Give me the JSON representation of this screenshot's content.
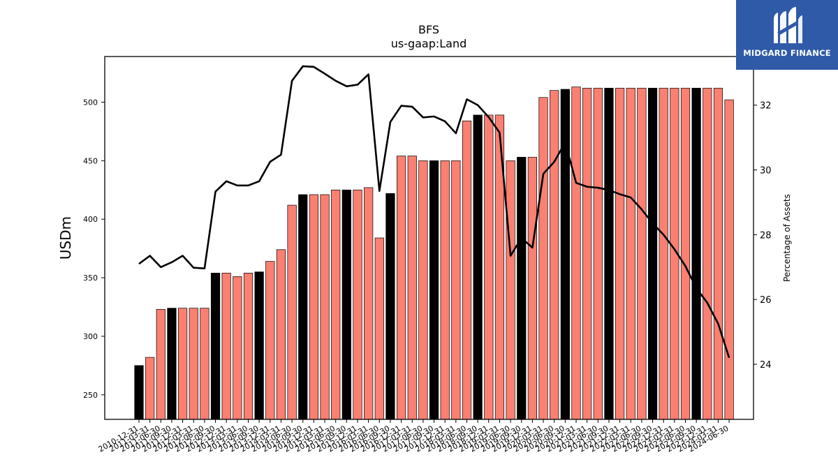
{
  "chart_data": {
    "type": "bar+line",
    "title": "BFS",
    "subtitle": "us-gaap:Land",
    "ylabel": "USDm",
    "y2label": "Percentage of Assets",
    "ylim": [
      229,
      539
    ],
    "y2lim": [
      22.3,
      33.5
    ],
    "yticks": [
      250,
      300,
      350,
      400,
      450,
      500
    ],
    "y2ticks": [
      24,
      26,
      28,
      30,
      32
    ],
    "highlight_color": "#000000",
    "bar_color": "#fa8072",
    "line_color": "#000000",
    "categories": [
      "2010-12-31",
      "2011-03-31",
      "2011-06-30",
      "2011-09-30",
      "2011-12-31",
      "2012-03-31",
      "2012-06-30",
      "2012-09-30",
      "2012-12-31",
      "2013-03-31",
      "2013-06-30",
      "2013-09-30",
      "2013-12-31",
      "2014-03-31",
      "2014-06-30",
      "2014-09-30",
      "2014-12-31",
      "2015-03-31",
      "2015-06-30",
      "2015-09-30",
      "2015-12-31",
      "2016-03-31",
      "2016-06-30",
      "2016-09-30",
      "2016-12-31",
      "2017-03-31",
      "2017-06-30",
      "2017-09-30",
      "2017-12-31",
      "2018-03-31",
      "2018-06-30",
      "2018-09-30",
      "2018-12-31",
      "2019-03-31",
      "2019-06-30",
      "2019-09-30",
      "2019-12-31",
      "2020-03-31",
      "2020-06-30",
      "2020-09-30",
      "2020-12-31",
      "2021-03-31",
      "2021-06-30",
      "2021-09-30",
      "2021-12-31",
      "2022-03-31",
      "2022-06-30",
      "2022-09-30",
      "2022-12-31",
      "2023-03-31",
      "2023-06-30",
      "2023-09-30",
      "2023-12-31",
      "2024-03-31",
      "2024-06-30"
    ],
    "tick_labels": [
      "2010-12-31",
      "2011-03-31",
      "2011-06-30",
      "2011-09-30",
      "2011-12-31",
      "2012-03-31",
      "2012-06-30",
      "2012-09-30",
      "2012-12-31",
      "2013-03-31",
      "2013-06-30",
      "2013-09-30",
      "2013-12-31",
      "2014-03-31",
      "2014-06-30",
      "2014-09-30",
      "2014-12-31",
      "2015-03-31",
      "2015-06-30",
      "2015-09-30",
      "2015-12-31",
      "2016-03-31",
      "2016-06-30",
      "2016-09-30",
      "2016-12-31",
      "2017-03-31",
      "2017-06-30",
      "2017-09-30",
      "2017-12-31",
      "2018-03-31",
      "2018-06-30",
      "2018-09-30",
      "2018-12-31",
      "2019-03-31",
      "2019-06-30",
      "2019-09-30",
      "2019-12-31",
      "2020-03-31",
      "2020-06-30",
      "2020-09-30",
      "2020-12-31",
      "2021-03-31",
      "2021-06-30",
      "2021-09-30",
      "2021-12-31",
      "2022-03-31",
      "2022-06-30",
      "2022-09-30",
      "2022-12-31",
      "2023-03-31",
      "2023-06-30",
      "2023-09-30",
      "2023-12-31",
      "2024-03-31",
      "2024-06-30"
    ],
    "series": [
      {
        "type": "bar",
        "values": [
          275,
          282,
          323,
          324,
          324,
          324,
          324,
          354,
          354,
          351,
          354,
          355,
          364,
          374,
          412,
          421,
          421,
          421,
          425,
          425,
          425,
          427,
          384,
          422,
          454,
          454,
          450,
          450,
          450,
          450,
          484,
          489,
          489,
          489,
          450,
          453,
          453,
          504,
          510,
          511,
          513,
          512,
          512,
          512,
          512,
          512,
          512,
          512,
          512,
          512,
          512,
          512,
          512,
          512,
          502
        ],
        "highlighted": [
          true,
          false,
          false,
          true,
          false,
          false,
          false,
          true,
          false,
          false,
          false,
          true,
          false,
          false,
          false,
          true,
          false,
          false,
          false,
          true,
          false,
          false,
          false,
          true,
          false,
          false,
          false,
          true,
          false,
          false,
          false,
          true,
          false,
          false,
          false,
          true,
          false,
          false,
          false,
          true,
          false,
          false,
          false,
          true,
          false,
          false,
          false,
          true,
          false,
          false,
          false,
          true,
          false,
          false,
          false
        ]
      },
      {
        "type": "line",
        "axis": "right",
        "values": [
          27.1,
          27.35,
          27.0,
          27.15,
          27.35,
          26.98,
          26.96,
          29.33,
          29.65,
          29.52,
          29.52,
          29.65,
          30.25,
          30.47,
          32.75,
          33.2,
          33.18,
          32.97,
          32.75,
          32.58,
          32.63,
          32.95,
          29.35,
          31.48,
          31.98,
          31.95,
          31.62,
          31.65,
          31.5,
          31.13,
          32.18,
          32.0,
          31.63,
          31.15,
          27.35,
          27.9,
          27.6,
          29.88,
          30.25,
          30.85,
          29.6,
          29.48,
          29.45,
          29.38,
          29.25,
          29.15,
          28.78,
          28.35,
          28.0,
          27.55,
          27.03,
          26.35,
          25.9,
          25.25,
          24.2
        ]
      }
    ]
  },
  "logo": {
    "text": "MIDGARD FINANCE",
    "icon": "midgard-m-logo-icon",
    "background": "#2f5aa8"
  }
}
